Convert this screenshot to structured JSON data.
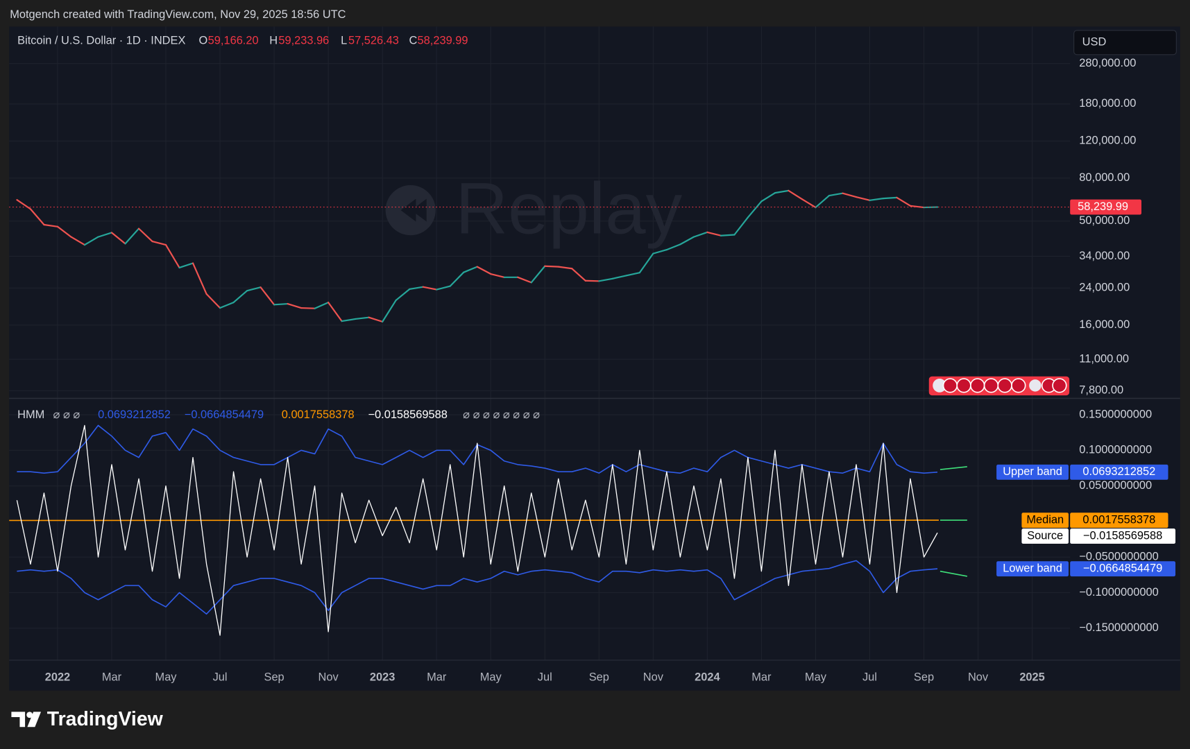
{
  "header": "Motgench created with TradingView.com, Nov 29, 2025 18:56 UTC",
  "brand": "TradingView",
  "currency": "USD",
  "watermark": "Replay",
  "chart_data": [
    {
      "type": "line",
      "title": "Bitcoin / U.S. Dollar · 1D · INDEX",
      "ohlc": [
        {
          "label": "O",
          "value": "59,166.20"
        },
        {
          "label": "H",
          "value": "59,233.96"
        },
        {
          "label": "L",
          "value": "57,526.43"
        },
        {
          "label": "C",
          "value": "58,239.99"
        }
      ],
      "log_scale": true,
      "colors": {
        "up": "#26a69a",
        "down": "#ef5350",
        "last": "#f23645"
      },
      "x": [
        -1.5,
        -1,
        -0.5,
        0,
        0.5,
        1,
        1.5,
        2,
        2.5,
        3,
        3.5,
        4,
        4.5,
        5,
        5.5,
        6,
        6.5,
        7,
        7.5,
        8,
        8.5,
        9,
        9.5,
        10,
        10.5,
        11,
        11.5,
        12,
        12.5,
        13,
        13.5,
        14,
        14.5,
        15,
        15.5,
        16,
        16.5,
        17,
        17.5,
        18,
        18.5,
        19,
        19.5,
        20,
        20.5,
        21,
        21.5,
        22,
        22.5,
        23,
        23.5,
        24,
        24.5,
        25,
        25.5,
        26,
        26.5,
        27,
        27.5,
        28,
        28.5,
        29,
        29.5,
        30,
        30.5,
        31,
        31.5,
        32,
        32.5
      ],
      "values": [
        63000,
        57000,
        48000,
        47000,
        42000,
        38500,
        42000,
        44000,
        39000,
        46000,
        40000,
        38500,
        30000,
        31500,
        22500,
        19300,
        20500,
        23300,
        24200,
        20000,
        20200,
        19300,
        19200,
        20500,
        16700,
        17100,
        17400,
        16600,
        21000,
        23700,
        24300,
        23600,
        24500,
        28500,
        30300,
        28000,
        27000,
        27000,
        25500,
        30500,
        30300,
        29700,
        26000,
        25900,
        26600,
        27500,
        28400,
        35000,
        36500,
        38700,
        42000,
        44200,
        42600,
        43000,
        52000,
        62000,
        68000,
        69700,
        63500,
        58000,
        66000,
        67700,
        65000,
        62700,
        64000,
        64600,
        59000,
        58000,
        58239.99
      ],
      "xlim": [
        -1.79,
        37.4
      ],
      "ylim": [
        7170,
        420000
      ],
      "yticks": [
        {
          "value": 280000,
          "label": "280,000.00"
        },
        {
          "value": 180000,
          "label": "180,000.00"
        },
        {
          "value": 120000,
          "label": "120,000.00"
        },
        {
          "value": 80000,
          "label": "80,000.00"
        },
        {
          "value": 50000,
          "label": "50,000.00"
        },
        {
          "value": 34000,
          "label": "34,000.00"
        },
        {
          "value": 24000,
          "label": "24,000.00"
        },
        {
          "value": 16000,
          "label": "16,000.00"
        },
        {
          "value": 11000,
          "label": "11,000.00"
        },
        {
          "value": 7800,
          "label": "7,800.00"
        }
      ],
      "grid": true
    },
    {
      "type": "line",
      "title": "HMM",
      "placeholders_a": "⌀ ⌀ ⌀",
      "placeholders_b": "⌀ ⌀ ⌀ ⌀ ⌀ ⌀ ⌀ ⌀",
      "series": [
        {
          "name": "Upper band",
          "color": "#2f5be8",
          "last_label": "0.0693212852",
          "values": [
            0.07,
            0.07,
            0.068,
            0.07,
            0.09,
            0.11,
            0.135,
            0.12,
            0.1,
            0.09,
            0.12,
            0.125,
            0.1,
            0.13,
            0.12,
            0.1,
            0.09,
            0.085,
            0.08,
            0.08,
            0.09,
            0.1,
            0.095,
            0.13,
            0.12,
            0.09,
            0.085,
            0.08,
            0.09,
            0.1,
            0.09,
            0.1,
            0.1,
            0.08,
            0.108,
            0.1,
            0.085,
            0.08,
            0.078,
            0.075,
            0.07,
            0.07,
            0.075,
            0.068,
            0.08,
            0.07,
            0.08,
            0.075,
            0.07,
            0.068,
            0.075,
            0.07,
            0.09,
            0.1,
            0.09,
            0.085,
            0.08,
            0.075,
            0.08,
            0.075,
            0.07,
            0.068,
            0.075,
            0.07,
            0.11,
            0.08,
            0.07,
            0.068,
            0.0693212852
          ],
          "projection": {
            "color": "#3fe07a",
            "x": [
              32.6,
              33.6
            ],
            "values": [
              0.073,
              0.077
            ]
          }
        },
        {
          "name": "Lower band",
          "color": "#2f5be8",
          "last_label": "−0.0664854479",
          "values": [
            -0.07,
            -0.068,
            -0.07,
            -0.068,
            -0.08,
            -0.1,
            -0.11,
            -0.1,
            -0.09,
            -0.09,
            -0.11,
            -0.12,
            -0.1,
            -0.115,
            -0.13,
            -0.11,
            -0.09,
            -0.085,
            -0.08,
            -0.08,
            -0.085,
            -0.09,
            -0.1,
            -0.125,
            -0.1,
            -0.09,
            -0.08,
            -0.08,
            -0.085,
            -0.09,
            -0.095,
            -0.09,
            -0.09,
            -0.08,
            -0.085,
            -0.08,
            -0.07,
            -0.075,
            -0.07,
            -0.068,
            -0.07,
            -0.072,
            -0.08,
            -0.085,
            -0.07,
            -0.07,
            -0.072,
            -0.068,
            -0.07,
            -0.068,
            -0.07,
            -0.068,
            -0.08,
            -0.11,
            -0.1,
            -0.09,
            -0.08,
            -0.075,
            -0.07,
            -0.068,
            -0.066,
            -0.06,
            -0.055,
            -0.07,
            -0.1,
            -0.08,
            -0.07,
            -0.068,
            -0.0664854479
          ],
          "projection": {
            "color": "#3fe07a",
            "x": [
              32.6,
              33.6
            ],
            "values": [
              -0.07,
              -0.077
            ]
          }
        },
        {
          "name": "Median",
          "color": "#ff9800",
          "last_label": "0.0017558378",
          "x": [
            -1.79,
            32.55
          ],
          "values": [
            0.0015,
            0.0017558378
          ],
          "projection": {
            "color": "#3fe07a",
            "x": [
              32.6,
              33.6
            ],
            "values": [
              0.0018,
              0.0018
            ]
          }
        },
        {
          "name": "Source",
          "color": "#ffffff",
          "last_label": "−0.0158569588",
          "values": [
            0.03,
            -0.06,
            0.04,
            -0.07,
            0.05,
            0.135,
            -0.05,
            0.08,
            -0.04,
            0.06,
            -0.07,
            0.05,
            -0.08,
            0.09,
            -0.06,
            -0.16,
            0.07,
            -0.05,
            0.06,
            -0.04,
            0.09,
            -0.06,
            0.05,
            -0.155,
            0.04,
            -0.03,
            0.03,
            -0.02,
            0.02,
            -0.03,
            0.06,
            -0.04,
            0.08,
            -0.05,
            0.11,
            -0.06,
            0.05,
            -0.07,
            0.04,
            -0.05,
            0.06,
            -0.04,
            0.03,
            -0.05,
            0.08,
            -0.06,
            0.1,
            -0.04,
            0.07,
            -0.05,
            0.05,
            -0.04,
            0.06,
            -0.08,
            0.09,
            -0.07,
            0.1,
            -0.09,
            0.08,
            -0.06,
            0.07,
            -0.05,
            0.08,
            -0.06,
            0.11,
            -0.1,
            0.06,
            -0.05,
            -0.0158569588
          ]
        }
      ],
      "xlim": [
        -1.79,
        37.4
      ],
      "ylim": [
        -0.195,
        0.173
      ],
      "yticks": [
        {
          "value": 0.15,
          "label": "0.1500000000"
        },
        {
          "value": 0.1,
          "label": "0.1000000000"
        },
        {
          "value": 0.05,
          "label": "0.0500000000"
        },
        {
          "value": -0.05,
          "label": "−0.0500000000"
        },
        {
          "value": -0.1,
          "label": "−0.1000000000"
        },
        {
          "value": -0.15,
          "label": "−0.1500000000"
        }
      ],
      "xticks": [
        {
          "value": 0,
          "label": "2022"
        },
        {
          "value": 2,
          "label": "Mar"
        },
        {
          "value": 4,
          "label": "May"
        },
        {
          "value": 6,
          "label": "Jul"
        },
        {
          "value": 8,
          "label": "Sep"
        },
        {
          "value": 10,
          "label": "Nov"
        },
        {
          "value": 12,
          "label": "2023"
        },
        {
          "value": 14,
          "label": "Mar"
        },
        {
          "value": 16,
          "label": "May"
        },
        {
          "value": 18,
          "label": "Jul"
        },
        {
          "value": 20,
          "label": "Sep"
        },
        {
          "value": 22,
          "label": "Nov"
        },
        {
          "value": 24,
          "label": "2024"
        },
        {
          "value": 26,
          "label": "Mar"
        },
        {
          "value": 28,
          "label": "May"
        },
        {
          "value": 30,
          "label": "Jul"
        },
        {
          "value": 32,
          "label": "Sep"
        },
        {
          "value": 34,
          "label": "Nov"
        },
        {
          "value": 36,
          "label": "2025"
        }
      ],
      "grid": true
    }
  ]
}
